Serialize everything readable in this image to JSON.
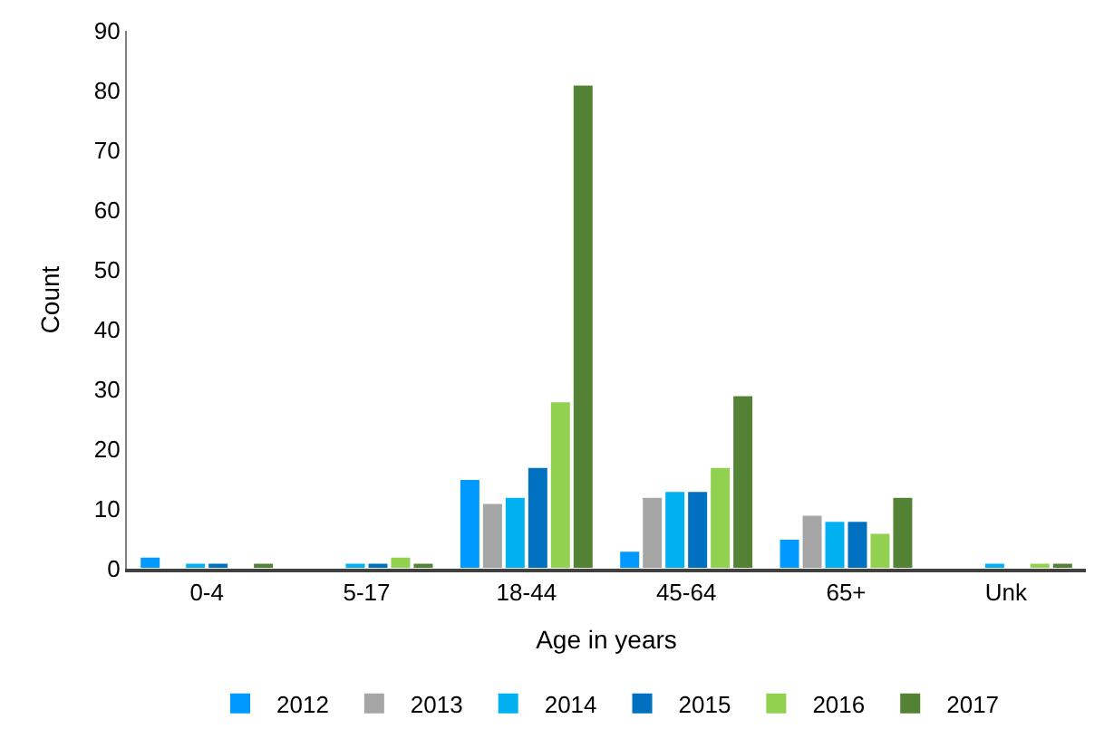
{
  "chart_data": {
    "type": "bar",
    "xlabel": "Age in years",
    "ylabel": "Count",
    "categories": [
      "0-4",
      "5-17",
      "18-44",
      "45-64",
      "65+",
      "Unk"
    ],
    "series": [
      {
        "name": "2012",
        "color": "#0099ff",
        "values": [
          2,
          null,
          15,
          3,
          5,
          null
        ]
      },
      {
        "name": "2013",
        "color": "#a5a5a5",
        "values": [
          null,
          null,
          11,
          12,
          9,
          null
        ]
      },
      {
        "name": "2014",
        "color": "#00b0f0",
        "values": [
          1,
          1,
          12,
          13,
          8,
          1
        ]
      },
      {
        "name": "2015",
        "color": "#0070c0",
        "values": [
          1,
          1,
          17,
          13,
          8,
          null
        ]
      },
      {
        "name": "2016",
        "color": "#92d050",
        "values": [
          null,
          2,
          28,
          17,
          6,
          1
        ]
      },
      {
        "name": "2017",
        "color": "#548235",
        "values": [
          1,
          1,
          81,
          29,
          12,
          1
        ]
      }
    ],
    "ylim": [
      0,
      90
    ],
    "yticks": [
      0,
      10,
      20,
      30,
      40,
      50,
      60,
      70,
      80,
      90
    ],
    "grid": false,
    "legend": "bottom"
  }
}
